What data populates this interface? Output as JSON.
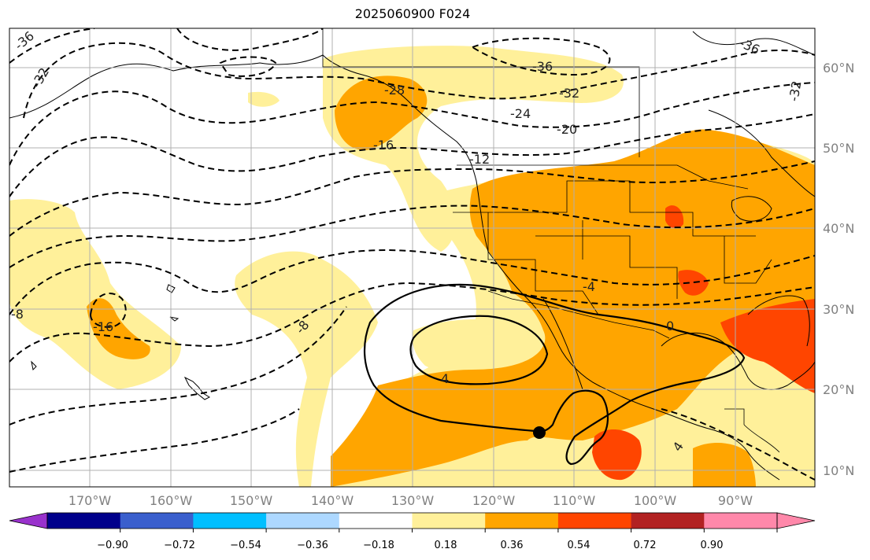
{
  "title": "2025060900 F024",
  "colors": {
    "fill_036": "#fff09a",
    "fill_054": "#ffa500",
    "fill_072": "#ff4500",
    "coast": "#000000",
    "grid": "#b0b0b0",
    "contour": "#000000"
  },
  "map": {
    "lat_labels": [
      "60°N",
      "50°N",
      "40°N",
      "30°N",
      "20°N",
      "10°N"
    ],
    "lon_labels": [
      "170°W",
      "160°W",
      "150°W",
      "140°W",
      "130°W",
      "120°W",
      "110°W",
      "100°W",
      "90°W"
    ],
    "contour_labels": [
      "-36",
      "-32",
      "-28",
      "-24",
      "-20",
      "-16",
      "-12",
      "-8",
      "-4",
      "0",
      "4",
      "-36",
      "-32",
      "-36",
      "-32",
      "-16",
      "-8",
      "4"
    ]
  },
  "colorbar": {
    "colors": [
      "#9932cc",
      "#00008b",
      "#3a5fcd",
      "#00bfff",
      "#add8ff",
      "#ffffff",
      "#fff09a",
      "#ffa500",
      "#ff4500",
      "#b22222",
      "#ff88aa",
      "#ff88aa"
    ],
    "tick_labels": [
      "−0.90",
      "−0.72",
      "−0.54",
      "−0.36",
      "−0.18",
      "0.18",
      "0.36",
      "0.54",
      "0.72",
      "0.90"
    ]
  }
}
